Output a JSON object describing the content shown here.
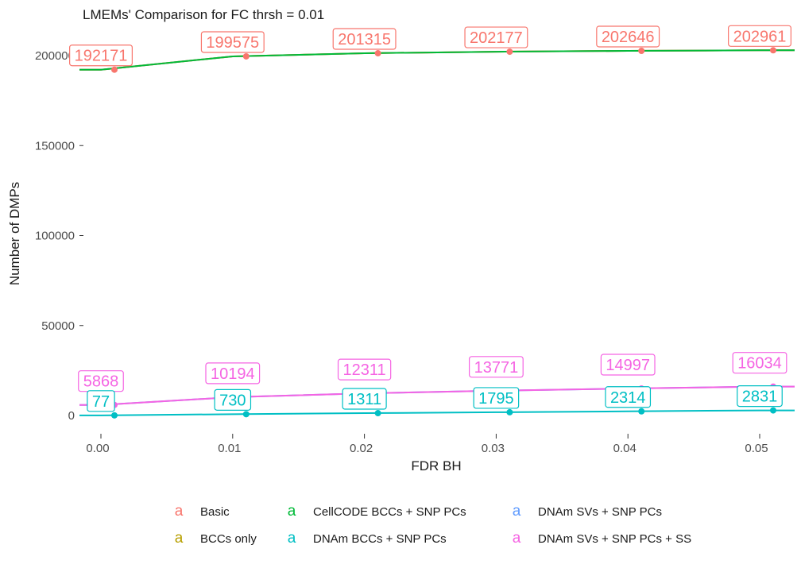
{
  "chart_data": {
    "type": "line",
    "title": "LMEMs' Comparison for FC thrsh = 0.01",
    "xlabel": "FDR BH",
    "ylabel": "Number of DMPs",
    "x": [
      0.0,
      0.01,
      0.02,
      0.03,
      0.04,
      0.05
    ],
    "x_tick_labels": [
      "0.00",
      "0.01",
      "0.02",
      "0.03",
      "0.04",
      "0.05"
    ],
    "y_ticks": [
      0,
      50000,
      100000,
      150000,
      200000
    ],
    "y_tick_labels": [
      "0",
      "50000",
      "100000",
      "150000",
      "200000"
    ],
    "xlim": [
      0.0,
      0.05
    ],
    "ylim": [
      0,
      210000
    ],
    "grid": false,
    "legend_position": "bottom",
    "legend_key_glyph": "a",
    "series": [
      {
        "name": "Basic",
        "color": "#F8766D",
        "values": [
          192171,
          199575,
          201315,
          202177,
          202646,
          202961
        ],
        "labels": [
          "192171",
          "199575",
          "201315",
          "202177",
          "202646",
          "202961"
        ],
        "labeled": true
      },
      {
        "name": "BCCs only",
        "color": "#B79F00",
        "values": [
          192171,
          199575,
          201315,
          202177,
          202646,
          202961
        ],
        "labels": [],
        "labeled": false
      },
      {
        "name": "CellCODE BCCs + SNP PCs",
        "color": "#00BA38",
        "values": [
          192171,
          199575,
          201315,
          202177,
          202646,
          202961
        ],
        "labels": [],
        "labeled": false
      },
      {
        "name": "DNAm BCCs + SNP PCs",
        "color": "#00BFC4",
        "values": [
          77,
          730,
          1311,
          1795,
          2314,
          2831
        ],
        "labels": [
          "77",
          "730",
          "1311",
          "1795",
          "2314",
          "2831"
        ],
        "labeled": true
      },
      {
        "name": "DNAm SVs + SNP PCs",
        "color": "#619CFF",
        "values": [
          5868,
          10194,
          12311,
          13771,
          14997,
          16034
        ],
        "labels": [],
        "labeled": false
      },
      {
        "name": "DNAm SVs + SNP PCs + SS",
        "color": "#F564E3",
        "values": [
          5868,
          10194,
          12311,
          13771,
          14997,
          16034
        ],
        "labels": [
          "5868",
          "10194",
          "12311",
          "13771",
          "14997",
          "16034"
        ],
        "labeled": true
      }
    ]
  }
}
